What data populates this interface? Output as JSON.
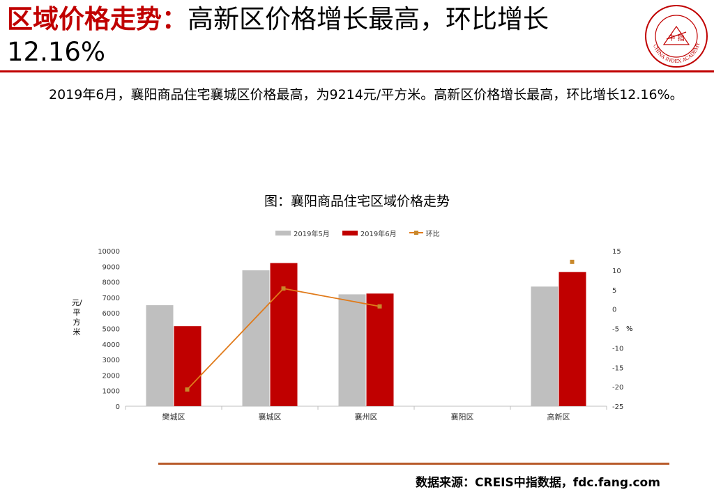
{
  "header": {
    "title_highlight": "区域价格走势：",
    "title_rest": "高新区价格增长最高，环比增长12.16%",
    "logo_text": "CHINA INDEX ACADEMY",
    "logo_center": "中 指"
  },
  "paragraph": "2019年6月，襄阳商品住宅襄城区价格最高，为9214元/平方米。高新区价格增长最高，环比增长12.16%。",
  "chart_title": "图：襄阳商品住宅区域价格走势",
  "colors": {
    "may": "#bfbfbf",
    "june": "#c00000",
    "mom": "#e07a1a",
    "accent": "#c00000"
  },
  "chart_data": {
    "type": "bar",
    "categories": [
      "樊城区",
      "襄城区",
      "襄州区",
      "襄阳区",
      "高新区"
    ],
    "series": [
      {
        "name": "2019年5月",
        "type": "bar",
        "axis": "left",
        "values": [
          6500,
          8750,
          7200,
          null,
          7700
        ]
      },
      {
        "name": "2019年6月",
        "type": "bar",
        "axis": "left",
        "values": [
          5150,
          9214,
          7250,
          null,
          8640
        ]
      },
      {
        "name": "环比",
        "type": "line",
        "axis": "right",
        "values": [
          -20.7,
          5.3,
          0.7,
          null,
          12.16
        ]
      }
    ],
    "ylabel": "元/平方米",
    "ylabel_right": "%",
    "ylim": [
      0,
      10000
    ],
    "ylim_right": [
      -25,
      15
    ],
    "yticks": [
      "0",
      "1000",
      "2000",
      "3000",
      "4000",
      "5000",
      "6000",
      "7000",
      "8000",
      "9000",
      "10000"
    ],
    "yticks_right": [
      "-25",
      "-20",
      "-15",
      "-10",
      "-5",
      "0",
      "5",
      "10",
      "15"
    ],
    "legend_position": "top",
    "grid": false
  },
  "source": "数据来源：CREIS中指数据，fdc.fang.com"
}
